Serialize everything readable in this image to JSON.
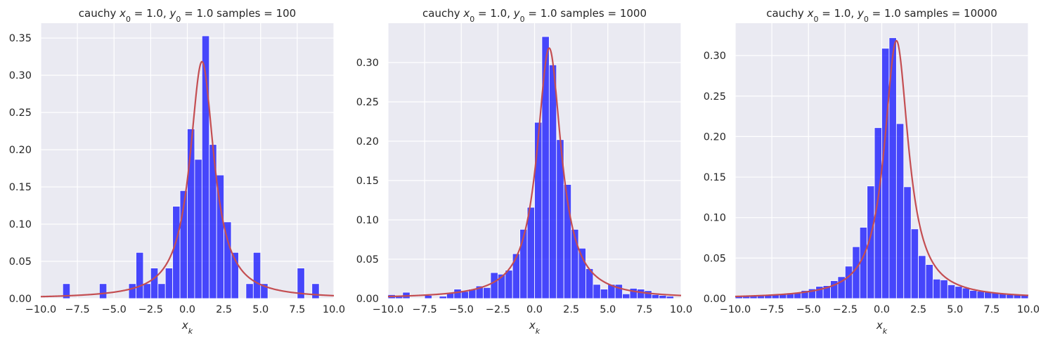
{
  "chart_data": [
    {
      "type": "bar",
      "title_parts": {
        "prefix": "cauchy ",
        "x0_label": "x",
        "x0_sub": "0",
        "x0_value": " = 1.0, ",
        "y0_label": "y",
        "y0_sub": "0",
        "y0_value": " = 1.0  samples = 100"
      },
      "xlabel": "x",
      "xlabel_sub": "k",
      "xlim": [
        -10,
        10
      ],
      "ylim": [
        0,
        0.37
      ],
      "xticks": [
        -10,
        -7.5,
        -5,
        -2.5,
        0,
        2.5,
        5,
        7.5,
        10
      ],
      "xtick_labels": [
        "−10.0",
        "−7.5",
        "−5.0",
        "−2.5",
        "0.0",
        "2.5",
        "5.0",
        "7.5",
        "10.0"
      ],
      "yticks": [
        0,
        0.05,
        0.1,
        0.15,
        0.2,
        0.25,
        0.3,
        0.35
      ],
      "ytick_labels": [
        "0.00",
        "0.05",
        "0.10",
        "0.15",
        "0.20",
        "0.25",
        "0.30",
        "0.35"
      ],
      "bin_start": -10,
      "bin_width": 0.5,
      "values": [
        0,
        0,
        0,
        0.02,
        0,
        0,
        0,
        0,
        0.02,
        0,
        0,
        0,
        0.02,
        0.062,
        0.02,
        0.041,
        0.02,
        0.041,
        0.124,
        0.145,
        0.228,
        0.187,
        0.353,
        0.207,
        0.166,
        0.103,
        0.062,
        0,
        0.02,
        0.062,
        0.02,
        0,
        0,
        0,
        0,
        0.041,
        0,
        0.02,
        0,
        0
      ],
      "pdf": {
        "x0": 1.0,
        "gamma": 1.0,
        "color": "#c44e52"
      },
      "bar_color": "#0000ff"
    },
    {
      "type": "bar",
      "title_parts": {
        "prefix": "cauchy ",
        "x0_label": "x",
        "x0_sub": "0",
        "x0_value": " = 1.0, ",
        "y0_label": "y",
        "y0_sub": "0",
        "y0_value": " = 1.0  samples = 1000"
      },
      "xlabel": "x",
      "xlabel_sub": "k",
      "xlim": [
        -10,
        10
      ],
      "ylim": [
        0,
        0.35
      ],
      "xticks": [
        -10,
        -7.5,
        -5,
        -2.5,
        0,
        2.5,
        5,
        7.5,
        10
      ],
      "xtick_labels": [
        "−10.0",
        "−7.5",
        "−5.0",
        "−2.5",
        "0.0",
        "2.5",
        "5.0",
        "7.5",
        "10.0"
      ],
      "yticks": [
        0,
        0.05,
        0.1,
        0.15,
        0.2,
        0.25,
        0.3
      ],
      "ytick_labels": [
        "0.00",
        "0.05",
        "0.10",
        "0.15",
        "0.20",
        "0.25",
        "0.30"
      ],
      "bin_start": -10,
      "bin_width": 0.5,
      "values": [
        0.005,
        0.003,
        0.008,
        0,
        0,
        0.004,
        0,
        0.003,
        0.007,
        0.012,
        0.009,
        0.012,
        0.016,
        0.014,
        0.033,
        0.031,
        0.036,
        0.057,
        0.088,
        0.116,
        0.224,
        0.333,
        0.297,
        0.202,
        0.145,
        0.088,
        0.064,
        0.038,
        0.018,
        0.012,
        0.018,
        0.018,
        0.006,
        0.013,
        0.012,
        0.01,
        0.005,
        0.004,
        0.003,
        0
      ],
      "pdf": {
        "x0": 1.0,
        "gamma": 1.0,
        "color": "#c44e52"
      },
      "bar_color": "#0000ff"
    },
    {
      "type": "bar",
      "title_parts": {
        "prefix": "cauchy ",
        "x0_label": "x",
        "x0_sub": "0",
        "x0_value": " = 1.0, ",
        "y0_label": "y",
        "y0_sub": "0",
        "y0_value": " = 1.0  samples = 10000"
      },
      "xlabel": "x",
      "xlabel_sub": "k",
      "xlim": [
        -10,
        10
      ],
      "ylim": [
        0,
        0.34
      ],
      "xticks": [
        -10,
        -7.5,
        -5,
        -2.5,
        0,
        2.5,
        5,
        7.5,
        10
      ],
      "xtick_labels": [
        "−10.0",
        "−7.5",
        "−5.0",
        "−2.5",
        "0.0",
        "2.5",
        "5.0",
        "7.5",
        "10.0"
      ],
      "yticks": [
        0,
        0.05,
        0.1,
        0.15,
        0.2,
        0.25,
        0.3
      ],
      "ytick_labels": [
        "0.00",
        "0.05",
        "0.10",
        "0.15",
        "0.20",
        "0.25",
        "0.30"
      ],
      "bin_start": -10,
      "bin_width": 0.5,
      "values": [
        0.003,
        0.003,
        0.003,
        0.004,
        0.005,
        0.005,
        0.006,
        0.007,
        0.007,
        0.01,
        0.012,
        0.015,
        0.016,
        0.022,
        0.027,
        0.04,
        0.064,
        0.088,
        0.139,
        0.211,
        0.309,
        0.322,
        0.216,
        0.138,
        0.086,
        0.053,
        0.042,
        0.024,
        0.023,
        0.017,
        0.015,
        0.013,
        0.01,
        0.009,
        0.008,
        0.007,
        0.006,
        0.005,
        0.005,
        0.004
      ],
      "pdf": {
        "x0": 1.0,
        "gamma": 1.0,
        "color": "#c44e52"
      },
      "bar_color": "#0000ff"
    }
  ]
}
